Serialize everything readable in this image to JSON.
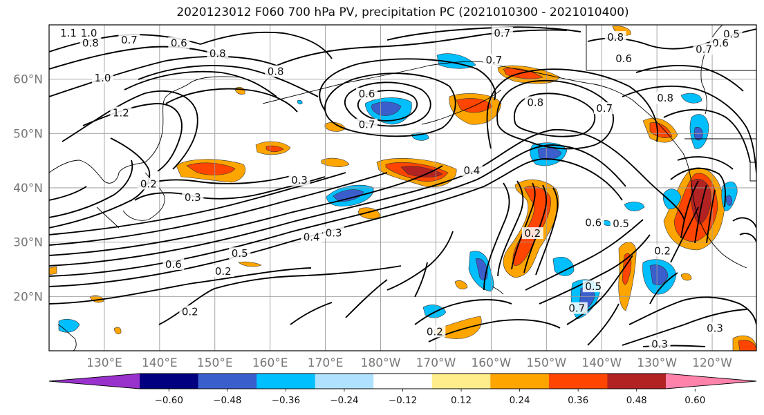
{
  "title": "2020123012 F060 700 hPa PV, precipitation PC (2021010300 - 2021010400)",
  "chart_data": {
    "type": "heatmap",
    "title": "2020123012 F060 700 hPa PV, precipitation PC (2021010300 - 2021010400)",
    "x_ticks": [
      "130°E",
      "140°E",
      "150°E",
      "160°E",
      "170°E",
      "180°W",
      "170°W",
      "160°W",
      "150°W",
      "140°W",
      "130°W",
      "120°W"
    ],
    "x_tick_lons": [
      130,
      140,
      150,
      160,
      170,
      180,
      190,
      200,
      210,
      220,
      230,
      240
    ],
    "y_ticks": [
      "60°N",
      "50°N",
      "40°N",
      "30°N",
      "20°N"
    ],
    "y_tick_lats": [
      60,
      50,
      40,
      30,
      20
    ],
    "xlim": [
      120,
      248
    ],
    "ylim": [
      10,
      70
    ],
    "grid": true,
    "colorbar": {
      "levels": [
        -0.6,
        -0.48,
        -0.36,
        -0.24,
        -0.12,
        0.12,
        0.24,
        0.36,
        0.48,
        0.6
      ],
      "labels": [
        "−0.60",
        "−0.48",
        "−0.36",
        "−0.24",
        "−0.12",
        "0.12",
        "0.24",
        "0.36",
        "0.48",
        "0.60"
      ],
      "colors": [
        "#9932cc",
        "#000080",
        "#3a5fcd",
        "#00bfff",
        "#b0e2ff",
        "#ffffff",
        "#ffec8b",
        "#ffa500",
        "#ff4500",
        "#b22222",
        "#ff82ab"
      ]
    },
    "contour_labels": [
      {
        "text": "1.1",
        "lon": 123.5,
        "lat": 68.5
      },
      {
        "text": "1.0",
        "lon": 127.2,
        "lat": 68.5
      },
      {
        "text": "0.8",
        "lon": 127.5,
        "lat": 66.6
      },
      {
        "text": "0.7",
        "lon": 134.5,
        "lat": 67.2
      },
      {
        "text": "0.6",
        "lon": 143.5,
        "lat": 66.6
      },
      {
        "text": "0.8",
        "lon": 150.5,
        "lat": 64.7
      },
      {
        "text": "0.8",
        "lon": 161,
        "lat": 61.4
      },
      {
        "text": "1.0",
        "lon": 129.7,
        "lat": 60.2
      },
      {
        "text": "1.2",
        "lon": 133,
        "lat": 53.8
      },
      {
        "text": "0.6",
        "lon": 177.5,
        "lat": 57.3
      },
      {
        "text": "0.7",
        "lon": 177.5,
        "lat": 51.6
      },
      {
        "text": "0.7",
        "lon": 200.5,
        "lat": 63.5
      },
      {
        "text": "0.7",
        "lon": 202,
        "lat": 68.5
      },
      {
        "text": "0.8",
        "lon": 222.5,
        "lat": 67.7
      },
      {
        "text": "0.6",
        "lon": 224,
        "lat": 63.8
      },
      {
        "text": "0.5",
        "lon": 243.5,
        "lat": 68.3
      },
      {
        "text": "0.6",
        "lon": 241.5,
        "lat": 66.6
      },
      {
        "text": "0.7",
        "lon": 238.5,
        "lat": 65.5
      },
      {
        "text": "0.8",
        "lon": 208,
        "lat": 55.7
      },
      {
        "text": "0.7",
        "lon": 220.5,
        "lat": 54.6
      },
      {
        "text": "0.8",
        "lon": 231.5,
        "lat": 56.5
      },
      {
        "text": "0.4",
        "lon": 196.5,
        "lat": 43.2
      },
      {
        "text": "0.3",
        "lon": 165.3,
        "lat": 41.4
      },
      {
        "text": "0.3",
        "lon": 146,
        "lat": 38.2
      },
      {
        "text": "0.2",
        "lon": 138,
        "lat": 40.7
      },
      {
        "text": "0.4",
        "lon": 167.5,
        "lat": 30.9
      },
      {
        "text": "0.3",
        "lon": 171.5,
        "lat": 31.7
      },
      {
        "text": "0.5",
        "lon": 154.5,
        "lat": 27.9
      },
      {
        "text": "0.6",
        "lon": 142.5,
        "lat": 25.9
      },
      {
        "text": "0.2",
        "lon": 151.5,
        "lat": 24.6
      },
      {
        "text": "0.2",
        "lon": 207.5,
        "lat": 31.6
      },
      {
        "text": "0.6",
        "lon": 218.5,
        "lat": 33.6
      },
      {
        "text": "0.5",
        "lon": 223.5,
        "lat": 33.4
      },
      {
        "text": "0.2",
        "lon": 231,
        "lat": 28.4
      },
      {
        "text": "0.5",
        "lon": 218.5,
        "lat": 21.8
      },
      {
        "text": "0.7",
        "lon": 215.5,
        "lat": 17.8
      },
      {
        "text": "0.2",
        "lon": 145.5,
        "lat": 17.2
      },
      {
        "text": "0.2",
        "lon": 189.8,
        "lat": 13.5
      },
      {
        "text": "0.3",
        "lon": 240.5,
        "lat": 14.1
      },
      {
        "text": "0.3",
        "lon": 230.5,
        "lat": 11.2
      }
    ]
  }
}
